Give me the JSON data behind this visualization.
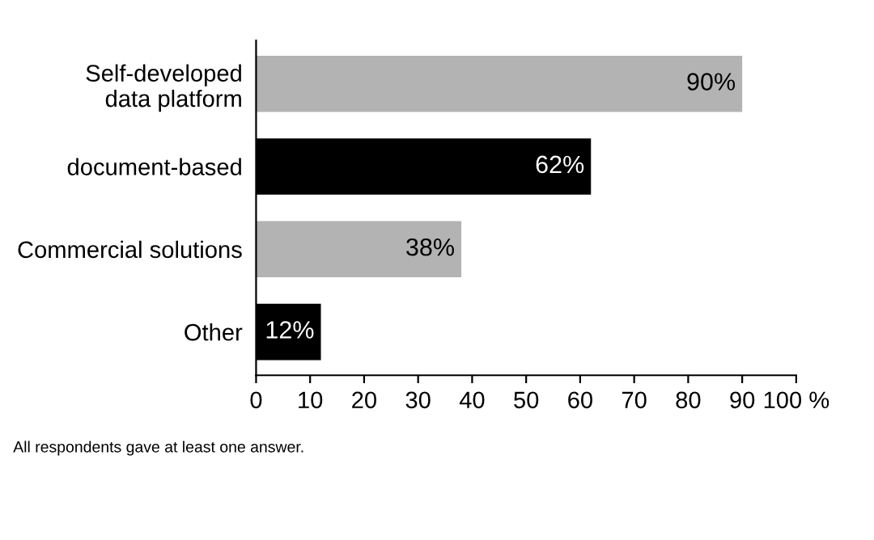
{
  "chart_data": {
    "type": "bar",
    "orientation": "horizontal",
    "categories": [
      "Self-developed\ndata platform",
      "document-based",
      "Commercial solutions",
      "Other"
    ],
    "values": [
      90,
      62,
      38,
      12
    ],
    "colors": [
      "#b3b3b3",
      "#000000",
      "#b3b3b3",
      "#000000"
    ],
    "value_labels": [
      "90%",
      "62%",
      "38%",
      "12%"
    ],
    "xlim": [
      0,
      100
    ],
    "xticks": [
      0,
      10,
      20,
      30,
      40,
      50,
      60,
      70,
      80,
      90,
      {
        "value": 100,
        "label": "100 %"
      }
    ],
    "grid": false,
    "legend": false,
    "annotations": [
      "All respondents gave at least one answer."
    ]
  }
}
